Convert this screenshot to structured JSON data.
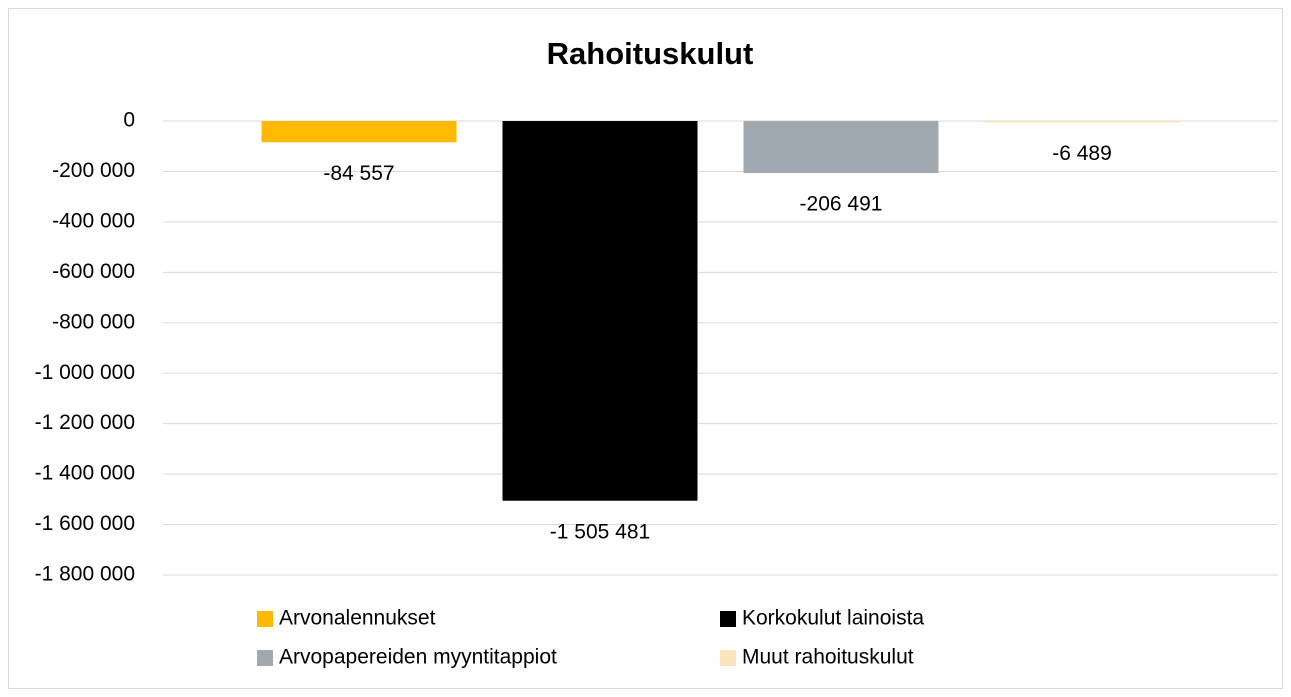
{
  "chart_data": {
    "type": "bar",
    "title": "Rahoituskulut",
    "series": [
      {
        "name": "Arvonalennukset",
        "color": "#FFB900",
        "values": [
          -84557
        ],
        "value_labels": [
          "-84 557"
        ]
      },
      {
        "name": "Korkokulut lainoista",
        "color": "#000000",
        "values": [
          -1505481
        ],
        "value_labels": [
          "-1 505 481"
        ]
      },
      {
        "name": "Arvopapereiden myyntitappiot",
        "color": "#A0A9B0",
        "values": [
          -206491
        ],
        "value_labels": [
          "-206 491"
        ]
      },
      {
        "name": "Muut rahoituskulut",
        "color": "#FCE4BE",
        "values": [
          -6489
        ],
        "value_labels": [
          "-6 489"
        ]
      }
    ],
    "ylim": [
      -1800000,
      0
    ],
    "yticks": [
      0,
      {
        "value": -200000,
        "label": "-200 000"
      },
      {
        "value": -400000,
        "label": "-400 000"
      },
      {
        "value": -600000,
        "label": "-600 000"
      },
      {
        "value": -800000,
        "label": "-800 000"
      },
      {
        "value": -1000000,
        "label": "-1 000 000"
      },
      {
        "value": -1200000,
        "label": "-1 200 000"
      },
      {
        "value": -1400000,
        "label": "-1 400 000"
      },
      {
        "value": -1600000,
        "label": "-1 600 000"
      },
      {
        "value": -1800000,
        "label": "-1 800 000"
      }
    ],
    "grid": true,
    "legend": "bottom"
  }
}
